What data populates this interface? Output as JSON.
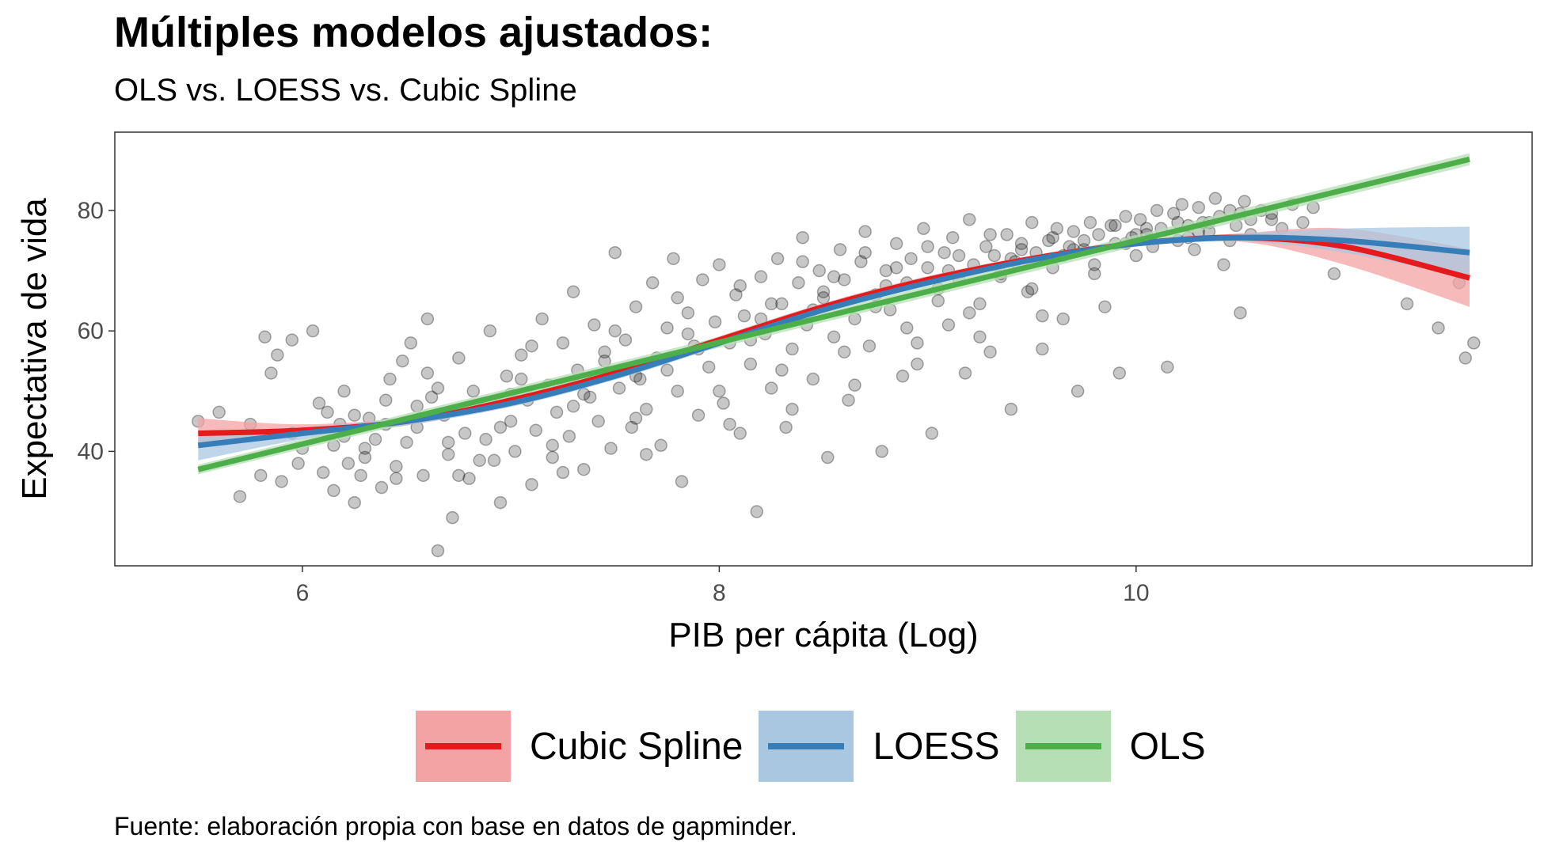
{
  "title": "Múltiples modelos ajustados:",
  "subtitle": "OLS vs. LOESS vs. Cubic Spline",
  "caption": "Fuente: elaboración propia con base en datos de gapminder.",
  "chart_data": {
    "type": "scatter",
    "xlabel": "PIB per cápita (Log)",
    "ylabel": "Expectativa de vida",
    "xlim": [
      5.1,
      11.9
    ],
    "ylim": [
      21,
      93
    ],
    "x_ticks": [
      6,
      8,
      10
    ],
    "y_ticks": [
      40,
      60,
      80
    ],
    "grid": false,
    "legend_position": "bottom",
    "point_style": {
      "color": "#000000",
      "opacity": 0.22
    },
    "series": [
      {
        "name": "Cubic Spline",
        "color": "#E41A1C",
        "band_color": "#F4A3A4",
        "x": [
          5.5,
          6.0,
          6.5,
          7.0,
          7.5,
          8.0,
          8.5,
          9.0,
          9.5,
          10.0,
          10.5,
          11.0,
          11.6
        ],
        "y": [
          43.0,
          43.5,
          45.0,
          48.5,
          53.0,
          58.5,
          64.0,
          68.5,
          72.0,
          74.5,
          75.5,
          74.0,
          68.8
        ],
        "lower": [
          40.5,
          42.5,
          44.3,
          47.8,
          52.4,
          57.9,
          63.4,
          67.9,
          71.5,
          74.0,
          74.8,
          71.0,
          64.0
        ],
        "upper": [
          45.5,
          44.5,
          45.7,
          49.2,
          53.6,
          59.1,
          64.6,
          69.1,
          72.5,
          75.0,
          76.2,
          77.0,
          73.6
        ]
      },
      {
        "name": "LOESS",
        "color": "#377EB8",
        "band_color": "#AAC7E2",
        "x": [
          5.5,
          6.0,
          6.5,
          7.0,
          7.5,
          8.0,
          8.5,
          9.0,
          9.5,
          10.0,
          10.5,
          11.0,
          11.6
        ],
        "y": [
          41.0,
          43.0,
          45.0,
          48.0,
          52.5,
          58.0,
          63.5,
          68.0,
          71.8,
          74.5,
          75.5,
          75.0,
          73.0
        ],
        "lower": [
          38.5,
          42.0,
          44.3,
          47.4,
          51.9,
          57.4,
          63.0,
          67.5,
          71.3,
          74.0,
          74.9,
          73.0,
          68.8
        ],
        "upper": [
          43.5,
          44.0,
          45.7,
          48.6,
          53.1,
          58.6,
          64.0,
          68.5,
          72.3,
          75.0,
          76.1,
          77.0,
          77.3
        ]
      },
      {
        "name": "OLS",
        "color": "#4DAF4A",
        "band_color": "#B7DFB5",
        "x": [
          5.5,
          11.6
        ],
        "y": [
          37.0,
          88.5
        ],
        "lower": [
          36.2,
          87.5
        ],
        "upper": [
          37.8,
          89.5
        ]
      }
    ],
    "legend": [
      "Cubic Spline",
      "LOESS",
      "OLS"
    ],
    "points": [
      [
        5.5,
        45.0
      ],
      [
        5.6,
        46.5
      ],
      [
        5.7,
        32.5
      ],
      [
        5.8,
        36.0
      ],
      [
        5.82,
        59.0
      ],
      [
        5.85,
        53.0
      ],
      [
        5.88,
        56.0
      ],
      [
        5.9,
        35.0
      ],
      [
        5.95,
        58.5
      ],
      [
        5.98,
        38.0
      ],
      [
        6.05,
        60.0
      ],
      [
        6.08,
        48.0
      ],
      [
        6.1,
        36.5
      ],
      [
        6.12,
        46.5
      ],
      [
        6.15,
        33.5
      ],
      [
        6.18,
        44.5
      ],
      [
        6.2,
        42.5
      ],
      [
        6.22,
        38.0
      ],
      [
        6.25,
        31.5
      ],
      [
        6.28,
        36.0
      ],
      [
        6.3,
        40.5
      ],
      [
        6.32,
        45.5
      ],
      [
        6.35,
        42.0
      ],
      [
        6.38,
        34.0
      ],
      [
        6.4,
        48.5
      ],
      [
        6.42,
        52.0
      ],
      [
        6.45,
        37.5
      ],
      [
        6.48,
        55.0
      ],
      [
        6.5,
        41.5
      ],
      [
        6.52,
        58.0
      ],
      [
        6.55,
        44.0
      ],
      [
        6.58,
        36.0
      ],
      [
        6.6,
        62.0
      ],
      [
        6.62,
        49.0
      ],
      [
        6.65,
        23.5
      ],
      [
        6.68,
        46.0
      ],
      [
        6.7,
        39.5
      ],
      [
        6.72,
        29.0
      ],
      [
        6.75,
        55.5
      ],
      [
        6.78,
        43.0
      ],
      [
        6.8,
        35.5
      ],
      [
        6.82,
        50.0
      ],
      [
        6.85,
        47.5
      ],
      [
        6.88,
        42.0
      ],
      [
        6.9,
        60.0
      ],
      [
        6.92,
        38.5
      ],
      [
        6.95,
        31.5
      ],
      [
        6.98,
        52.5
      ],
      [
        7.0,
        45.0
      ],
      [
        7.02,
        40.0
      ],
      [
        7.05,
        56.0
      ],
      [
        7.08,
        48.5
      ],
      [
        7.1,
        34.5
      ],
      [
        7.12,
        43.5
      ],
      [
        7.15,
        62.0
      ],
      [
        7.18,
        51.0
      ],
      [
        7.2,
        39.0
      ],
      [
        7.22,
        46.5
      ],
      [
        7.25,
        58.0
      ],
      [
        7.28,
        42.5
      ],
      [
        7.3,
        66.5
      ],
      [
        7.32,
        53.5
      ],
      [
        7.35,
        37.0
      ],
      [
        7.38,
        49.0
      ],
      [
        7.4,
        61.0
      ],
      [
        7.42,
        45.0
      ],
      [
        7.45,
        55.0
      ],
      [
        7.48,
        40.5
      ],
      [
        7.5,
        73.0
      ],
      [
        7.52,
        50.5
      ],
      [
        7.55,
        58.5
      ],
      [
        7.58,
        44.0
      ],
      [
        7.6,
        64.0
      ],
      [
        7.62,
        52.0
      ],
      [
        7.65,
        47.0
      ],
      [
        7.68,
        68.0
      ],
      [
        7.7,
        55.5
      ],
      [
        7.72,
        41.0
      ],
      [
        7.75,
        60.5
      ],
      [
        7.78,
        72.0
      ],
      [
        7.8,
        50.0
      ],
      [
        7.82,
        35.0
      ],
      [
        7.85,
        63.0
      ],
      [
        7.88,
        57.5
      ],
      [
        7.9,
        46.0
      ],
      [
        7.92,
        68.5
      ],
      [
        7.95,
        54.0
      ],
      [
        7.98,
        61.5
      ],
      [
        8.0,
        71.0
      ],
      [
        8.02,
        48.0
      ],
      [
        8.05,
        58.0
      ],
      [
        8.08,
        66.0
      ],
      [
        8.1,
        43.0
      ],
      [
        8.12,
        62.5
      ],
      [
        8.15,
        54.5
      ],
      [
        8.18,
        30.0
      ],
      [
        8.2,
        69.0
      ],
      [
        8.22,
        59.5
      ],
      [
        8.25,
        50.5
      ],
      [
        8.28,
        72.0
      ],
      [
        8.3,
        64.5
      ],
      [
        8.32,
        44.0
      ],
      [
        8.35,
        57.0
      ],
      [
        8.38,
        68.0
      ],
      [
        8.4,
        75.5
      ],
      [
        8.42,
        61.0
      ],
      [
        8.45,
        52.0
      ],
      [
        8.48,
        70.0
      ],
      [
        8.5,
        65.5
      ],
      [
        8.52,
        39.0
      ],
      [
        8.55,
        59.0
      ],
      [
        8.58,
        73.5
      ],
      [
        8.6,
        68.5
      ],
      [
        8.62,
        48.5
      ],
      [
        8.65,
        62.0
      ],
      [
        8.68,
        71.5
      ],
      [
        8.7,
        76.5
      ],
      [
        8.72,
        57.5
      ],
      [
        8.75,
        66.0
      ],
      [
        8.78,
        40.0
      ],
      [
        8.8,
        70.0
      ],
      [
        8.82,
        63.5
      ],
      [
        8.85,
        74.5
      ],
      [
        8.88,
        52.5
      ],
      [
        8.9,
        68.0
      ],
      [
        8.92,
        72.0
      ],
      [
        8.95,
        58.0
      ],
      [
        8.98,
        77.0
      ],
      [
        9.0,
        70.5
      ],
      [
        9.02,
        43.0
      ],
      [
        9.05,
        65.0
      ],
      [
        9.08,
        73.0
      ],
      [
        9.1,
        61.0
      ],
      [
        9.12,
        75.5
      ],
      [
        9.15,
        68.5
      ],
      [
        9.18,
        53.0
      ],
      [
        9.2,
        78.5
      ],
      [
        9.22,
        71.0
      ],
      [
        9.25,
        64.5
      ],
      [
        9.28,
        74.0
      ],
      [
        9.3,
        56.5
      ],
      [
        9.32,
        72.5
      ],
      [
        9.35,
        69.0
      ],
      [
        9.38,
        76.0
      ],
      [
        9.4,
        47.0
      ],
      [
        9.42,
        71.5
      ],
      [
        9.45,
        74.5
      ],
      [
        9.48,
        66.5
      ],
      [
        9.5,
        78.0
      ],
      [
        9.52,
        73.0
      ],
      [
        9.55,
        57.0
      ],
      [
        9.58,
        75.0
      ],
      [
        9.6,
        70.5
      ],
      [
        9.62,
        77.0
      ],
      [
        9.65,
        62.0
      ],
      [
        9.68,
        74.0
      ],
      [
        9.7,
        76.5
      ],
      [
        9.72,
        50.0
      ],
      [
        9.75,
        73.5
      ],
      [
        9.78,
        78.0
      ],
      [
        9.8,
        71.0
      ],
      [
        9.82,
        76.0
      ],
      [
        9.85,
        64.0
      ],
      [
        9.88,
        77.5
      ],
      [
        9.9,
        74.5
      ],
      [
        9.92,
        53.0
      ],
      [
        9.95,
        79.0
      ],
      [
        9.98,
        75.5
      ],
      [
        10.0,
        72.5
      ],
      [
        10.02,
        78.5
      ],
      [
        10.05,
        76.0
      ],
      [
        10.08,
        74.0
      ],
      [
        10.1,
        80.0
      ],
      [
        10.12,
        77.0
      ],
      [
        10.15,
        54.0
      ],
      [
        10.18,
        79.5
      ],
      [
        10.2,
        75.0
      ],
      [
        10.22,
        81.0
      ],
      [
        10.25,
        77.5
      ],
      [
        10.28,
        73.5
      ],
      [
        10.3,
        80.5
      ],
      [
        10.32,
        78.0
      ],
      [
        10.35,
        76.5
      ],
      [
        10.38,
        82.0
      ],
      [
        10.4,
        79.0
      ],
      [
        10.42,
        71.0
      ],
      [
        10.45,
        80.0
      ],
      [
        10.48,
        77.5
      ],
      [
        10.5,
        63.0
      ],
      [
        10.52,
        81.5
      ],
      [
        10.55,
        78.5
      ],
      [
        10.6,
        80.0
      ],
      [
        10.65,
        79.5
      ],
      [
        10.7,
        77.0
      ],
      [
        10.75,
        81.0
      ],
      [
        10.8,
        78.0
      ],
      [
        10.85,
        80.5
      ],
      [
        10.95,
        69.5
      ],
      [
        11.3,
        64.5
      ],
      [
        11.45,
        60.5
      ],
      [
        11.55,
        68.0
      ],
      [
        11.58,
        55.5
      ],
      [
        11.62,
        58.0
      ],
      [
        6.0,
        40.5
      ],
      [
        6.4,
        44.5
      ],
      [
        6.7,
        41.5
      ],
      [
        7.0,
        49.5
      ],
      [
        7.3,
        47.5
      ],
      [
        7.6,
        52.5
      ],
      [
        7.9,
        57.0
      ],
      [
        8.2,
        62.0
      ],
      [
        8.5,
        66.5
      ],
      [
        8.8,
        67.5
      ],
      [
        9.1,
        70.0
      ],
      [
        9.4,
        72.0
      ],
      [
        9.7,
        73.5
      ],
      [
        10.0,
        76.0
      ],
      [
        10.3,
        76.5
      ],
      [
        6.2,
        50.0
      ],
      [
        6.6,
        53.0
      ],
      [
        7.1,
        57.5
      ],
      [
        7.5,
        60.0
      ],
      [
        7.8,
        65.5
      ],
      [
        8.1,
        67.5
      ],
      [
        8.4,
        71.5
      ],
      [
        8.7,
        73.0
      ],
      [
        9.0,
        74.0
      ],
      [
        9.3,
        76.0
      ],
      [
        9.6,
        75.5
      ],
      [
        9.9,
        77.5
      ],
      [
        10.2,
        78.0
      ],
      [
        10.5,
        79.5
      ],
      [
        6.3,
        39.0
      ],
      [
        6.75,
        36.0
      ],
      [
        7.2,
        41.0
      ],
      [
        7.6,
        45.5
      ],
      [
        8.0,
        50.0
      ],
      [
        8.3,
        53.5
      ],
      [
        8.6,
        56.5
      ],
      [
        8.9,
        60.5
      ],
      [
        9.2,
        63.0
      ],
      [
        9.5,
        67.0
      ],
      [
        9.8,
        69.5
      ],
      [
        5.75,
        44.5
      ],
      [
        6.15,
        41.0
      ],
      [
        6.55,
        47.5
      ],
      [
        6.95,
        44.0
      ],
      [
        7.35,
        49.5
      ],
      [
        7.75,
        53.5
      ],
      [
        8.15,
        58.5
      ],
      [
        8.45,
        63.5
      ],
      [
        8.75,
        64.0
      ],
      [
        9.05,
        67.0
      ],
      [
        9.35,
        69.5
      ],
      [
        9.65,
        72.5
      ],
      [
        9.95,
        74.5
      ],
      [
        10.25,
        75.5
      ],
      [
        10.45,
        75.0
      ],
      [
        6.85,
        38.5
      ],
      [
        7.25,
        36.5
      ],
      [
        7.65,
        39.5
      ],
      [
        8.05,
        44.5
      ],
      [
        8.35,
        47.0
      ],
      [
        8.65,
        51.0
      ],
      [
        8.95,
        54.5
      ],
      [
        9.25,
        59.0
      ],
      [
        9.55,
        62.5
      ],
      [
        10.55,
        76.0
      ],
      [
        10.65,
        78.5
      ],
      [
        6.45,
        35.5
      ],
      [
        5.95,
        43.0
      ],
      [
        6.25,
        46.0
      ],
      [
        6.65,
        50.5
      ],
      [
        7.05,
        52.0
      ],
      [
        7.45,
        56.5
      ],
      [
        7.85,
        59.5
      ],
      [
        8.25,
        64.5
      ],
      [
        8.55,
        69.0
      ],
      [
        8.85,
        70.5
      ],
      [
        9.15,
        72.5
      ],
      [
        9.45,
        73.5
      ],
      [
        9.75,
        75.0
      ],
      [
        10.05,
        77.0
      ],
      [
        10.35,
        78.0
      ]
    ]
  }
}
